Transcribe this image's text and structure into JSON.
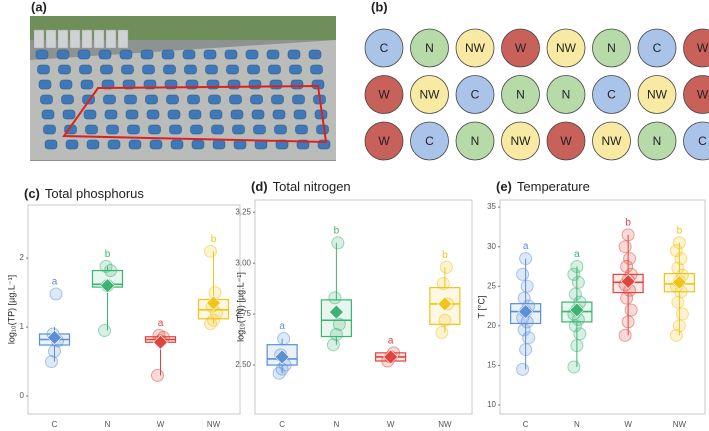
{
  "panels": {
    "a": {
      "label": "(a)"
    },
    "b": {
      "label": "(b)",
      "colors": {
        "C": "#a9c4e8",
        "N": "#b6dba9",
        "NW": "#f8eaa2",
        "W": "#c9615b"
      },
      "grid": [
        [
          "C",
          "N",
          "NW",
          "W",
          "NW",
          "N",
          "C",
          "W"
        ],
        [
          "W",
          "NW",
          "C",
          "N",
          "N",
          "C",
          "NW",
          "W"
        ],
        [
          "W",
          "C",
          "N",
          "NW",
          "W",
          "NW",
          "N",
          "C"
        ]
      ]
    }
  },
  "chart_data": [
    {
      "type": "box",
      "panel": "(c)",
      "title": "Total phosphorus",
      "ylabel": "log₁₀(TP) [µg.L⁻¹]",
      "categories": [
        "C",
        "N",
        "W",
        "NW"
      ],
      "colors": [
        "#5b8fd6",
        "#3cb371",
        "#e0443c",
        "#f0c419"
      ],
      "ylim": [
        -0.26,
        2.77
      ],
      "yticks": [
        0,
        1,
        2
      ],
      "boxes": [
        {
          "min": 0.5,
          "q1": 0.74,
          "median": 0.82,
          "q3": 0.9,
          "max": 1.0,
          "mean": 0.85,
          "points": [
            0.5,
            0.65,
            0.8,
            0.9,
            1.48
          ],
          "letter": "a"
        },
        {
          "min": 0.95,
          "q1": 1.58,
          "median": 1.62,
          "q3": 1.82,
          "max": 1.88,
          "mean": 1.6,
          "points": [
            0.95,
            1.6,
            1.82,
            1.88
          ],
          "letter": "b"
        },
        {
          "min": 0.3,
          "q1": 0.78,
          "median": 0.82,
          "q3": 0.86,
          "max": 0.88,
          "mean": 0.78,
          "points": [
            0.3,
            0.8,
            0.85,
            0.88
          ],
          "letter": "a"
        },
        {
          "min": 1.05,
          "q1": 1.12,
          "median": 1.25,
          "q3": 1.4,
          "max": 2.1,
          "mean": 1.35,
          "points": [
            1.05,
            1.1,
            1.2,
            1.3,
            1.5,
            2.1
          ],
          "letter": "b"
        }
      ]
    },
    {
      "type": "box",
      "panel": "(d)",
      "title": "Total nitrogen",
      "ylabel": "log₁₀(TN) [µg.L⁻¹]",
      "categories": [
        "C",
        "N",
        "W",
        "NW"
      ],
      "colors": [
        "#5b8fd6",
        "#3cb371",
        "#e0443c",
        "#f0c419"
      ],
      "ylim": [
        2.26,
        3.31
      ],
      "yticks": [
        {
          "value": 2.5,
          "label": "2.50"
        },
        {
          "value": 2.75,
          "label": "2.75"
        },
        {
          "value": 3.0,
          "label": "3.00"
        },
        {
          "value": 3.25,
          "label": "3.25"
        }
      ],
      "boxes": [
        {
          "min": 2.46,
          "q1": 2.5,
          "median": 2.53,
          "q3": 2.6,
          "max": 2.63,
          "mean": 2.54,
          "points": [
            2.46,
            2.48,
            2.5,
            2.55,
            2.63
          ],
          "letter": "a"
        },
        {
          "min": 2.6,
          "q1": 2.64,
          "median": 2.72,
          "q3": 2.82,
          "max": 3.1,
          "mean": 2.76,
          "points": [
            2.6,
            2.65,
            2.7,
            2.83,
            3.1
          ],
          "letter": "b"
        },
        {
          "min": 2.52,
          "q1": 2.52,
          "median": 2.54,
          "q3": 2.56,
          "max": 2.56,
          "mean": 2.54,
          "points": [
            2.52,
            2.54,
            2.56
          ],
          "letter": "a"
        },
        {
          "min": 2.66,
          "q1": 2.7,
          "median": 2.8,
          "q3": 2.88,
          "max": 2.98,
          "mean": 2.8,
          "points": [
            2.66,
            2.72,
            2.8,
            2.9,
            2.98
          ],
          "letter": "b"
        }
      ]
    },
    {
      "type": "box",
      "panel": "(e)",
      "title": "Temperature",
      "ylabel": "T [°C]",
      "categories": [
        "C",
        "N",
        "W",
        "NW"
      ],
      "colors": [
        "#5b8fd6",
        "#3cb371",
        "#e0443c",
        "#f0c419"
      ],
      "ylim": [
        8.86,
        35.9
      ],
      "yticks": [
        10,
        15,
        20,
        25,
        30,
        35
      ],
      "boxes": [
        {
          "min": 14.5,
          "q1": 20.3,
          "median": 21.8,
          "q3": 22.8,
          "max": 28.5,
          "mean": 21.8,
          "points": [
            14.5,
            17,
            18.5,
            19.5,
            20.5,
            21,
            21.8,
            22.5,
            23.5,
            25,
            26.5,
            28.5
          ],
          "letter": "a"
        },
        {
          "min": 14.8,
          "q1": 20.5,
          "median": 21.8,
          "q3": 23,
          "max": 27.5,
          "mean": 22,
          "points": [
            14.8,
            17.5,
            19,
            20,
            20.8,
            21.5,
            22,
            23,
            24,
            25.5,
            26.5,
            27.5
          ],
          "letter": "a"
        },
        {
          "min": 18.8,
          "q1": 24.2,
          "median": 25.5,
          "q3": 26.5,
          "max": 31.5,
          "mean": 25.6,
          "points": [
            18.8,
            20.5,
            22,
            23.5,
            24.5,
            25.2,
            25.8,
            26.5,
            27.5,
            28.5,
            30,
            31.5
          ],
          "letter": "b"
        },
        {
          "min": 18.8,
          "q1": 24.3,
          "median": 25.3,
          "q3": 26.6,
          "max": 30.5,
          "mean": 25.5,
          "points": [
            18.8,
            20,
            21.5,
            23,
            24.3,
            25,
            25.6,
            26.4,
            27.3,
            28.5,
            29.5,
            30.5
          ],
          "letter": "b"
        }
      ]
    }
  ]
}
